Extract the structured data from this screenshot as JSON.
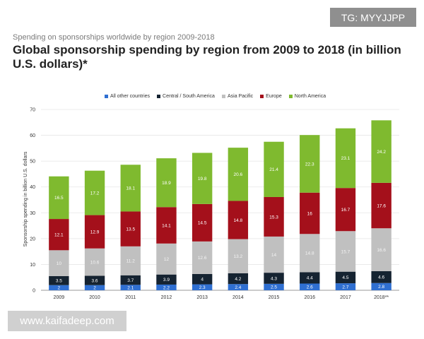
{
  "watermarks": {
    "tg": "TG: MYYJJPP",
    "site": "www.kaifadeep.com"
  },
  "chart_data": {
    "type": "bar",
    "stacked": true,
    "subtitle": "Spending on sponsorships worldwide by region 2009-2018",
    "title": "Global sponsorship spending by region from 2009 to 2018 (in billion U.S. dollars)*",
    "xlabel": "",
    "ylabel": "Sponsorship spending in billion U.S. dollars",
    "ylim": [
      0,
      70
    ],
    "yticks": [
      0,
      10,
      20,
      30,
      40,
      50,
      60,
      70
    ],
    "grid": true,
    "legend_position": "top",
    "categories": [
      "2009",
      "2010",
      "2011",
      "2012",
      "2013",
      "2014",
      "2015",
      "2016",
      "2017",
      "2018**"
    ],
    "series": [
      {
        "name": "All other countries",
        "color": "#2f6fd1",
        "values": [
          2.0,
          2.0,
          2.1,
          2.2,
          2.3,
          2.4,
          2.5,
          2.6,
          2.7,
          2.8
        ]
      },
      {
        "name": "Central / South America",
        "color": "#152331",
        "values": [
          3.5,
          3.6,
          3.7,
          3.9,
          4,
          4.2,
          4.3,
          4.4,
          4.5,
          4.6
        ]
      },
      {
        "name": "Asia Pacific",
        "color": "#c0c0c0",
        "values": [
          10,
          10.6,
          11.2,
          12,
          12.6,
          13.2,
          14,
          14.8,
          15.7,
          16.6
        ]
      },
      {
        "name": "Europe",
        "color": "#a4101b",
        "values": [
          12.1,
          12.9,
          13.5,
          14.1,
          14.5,
          14.8,
          15.3,
          16,
          16.7,
          17.6
        ]
      },
      {
        "name": "North America",
        "color": "#7fba2f",
        "values": [
          16.5,
          17.2,
          18.1,
          18.9,
          19.8,
          20.6,
          21.4,
          22.3,
          23.1,
          24.2
        ]
      }
    ]
  }
}
